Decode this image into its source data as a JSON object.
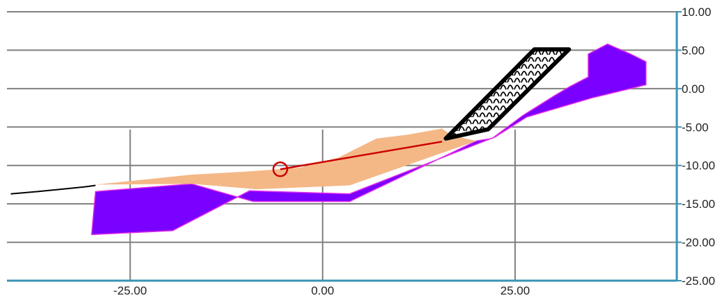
{
  "chart_data": {
    "type": "diagram",
    "title": "",
    "xlabel": "",
    "ylabel": "",
    "x_ticks": [
      "-25.00",
      "0.00",
      "25.00"
    ],
    "y_ticks": [
      "10.00",
      "5.00",
      "0.00",
      "-5.00",
      "-10.00",
      "-15.00",
      "-20.00",
      "-25.00"
    ],
    "x_tick_values": [
      -25,
      0,
      25
    ],
    "y_tick_values": [
      10,
      5,
      0,
      -5,
      -10,
      -15,
      -20,
      -25
    ],
    "xlim": [
      -41,
      46
    ],
    "ylim": [
      -25,
      10
    ],
    "grid": true,
    "legend": "none",
    "colors": {
      "axis": "#3a93b4",
      "grid": "#7f7f7f",
      "fill_material": "#f4b887",
      "bedrock_material": "#7a00ff",
      "bedrock_edge": "#e02de8",
      "ground_line": "#000000",
      "slip_line": "#cc0000",
      "retaining_block_outline": "#000000",
      "retaining_block_fill": "#ffffff"
    },
    "regions": [
      {
        "material": "bedrock",
        "polygon": [
          [
            -29.5,
            -13.4
          ],
          [
            -17,
            -12.4
          ],
          [
            -9,
            -14.7
          ],
          [
            3.5,
            -14.7
          ],
          [
            20,
            -6.8
          ],
          [
            22,
            -6.5
          ],
          [
            26,
            -3.5
          ],
          [
            30,
            -1
          ],
          [
            32,
            0.2
          ],
          [
            34.5,
            1.5
          ],
          [
            34.5,
            4.5
          ],
          [
            37,
            5.8
          ],
          [
            40,
            4.5
          ],
          [
            42,
            3.5
          ],
          [
            42,
            0.5
          ],
          [
            35,
            -1.2
          ],
          [
            26.5,
            -3.7
          ],
          [
            22.4,
            -6.3
          ],
          [
            3.5,
            -13.7
          ],
          [
            -9.5,
            -13.3
          ],
          [
            -19.5,
            -18.5
          ],
          [
            -30,
            -19
          ]
        ]
      },
      {
        "material": "fill",
        "polygon": [
          [
            -29.5,
            -12.5
          ],
          [
            -17,
            -11.2
          ],
          [
            -10,
            -10.8
          ],
          [
            -3,
            -10.3
          ],
          [
            2,
            -9
          ],
          [
            7,
            -6.5
          ],
          [
            11,
            -6
          ],
          [
            15.5,
            -5.2
          ],
          [
            16.5,
            -5.9
          ],
          [
            18.5,
            -6.5
          ],
          [
            20,
            -6.8
          ],
          [
            3.5,
            -12.6
          ],
          [
            -8.5,
            -13.1
          ],
          [
            -17,
            -12.4
          ]
        ]
      },
      {
        "material": "retaining-block",
        "polygon": [
          [
            16,
            -6.5
          ],
          [
            27.5,
            5.1
          ],
          [
            32,
            5.1
          ],
          [
            21.5,
            -5.3
          ]
        ]
      }
    ],
    "ground_line": [
      [
        -40.5,
        -13.7
      ],
      [
        -37,
        -13.4
      ],
      [
        -34,
        -13.1
      ],
      [
        -31,
        -12.8
      ],
      [
        -29.5,
        -12.6
      ]
    ],
    "slip_line": {
      "center": [
        -5.5,
        -10.5
      ],
      "end": [
        15.5,
        -6.9
      ]
    }
  }
}
